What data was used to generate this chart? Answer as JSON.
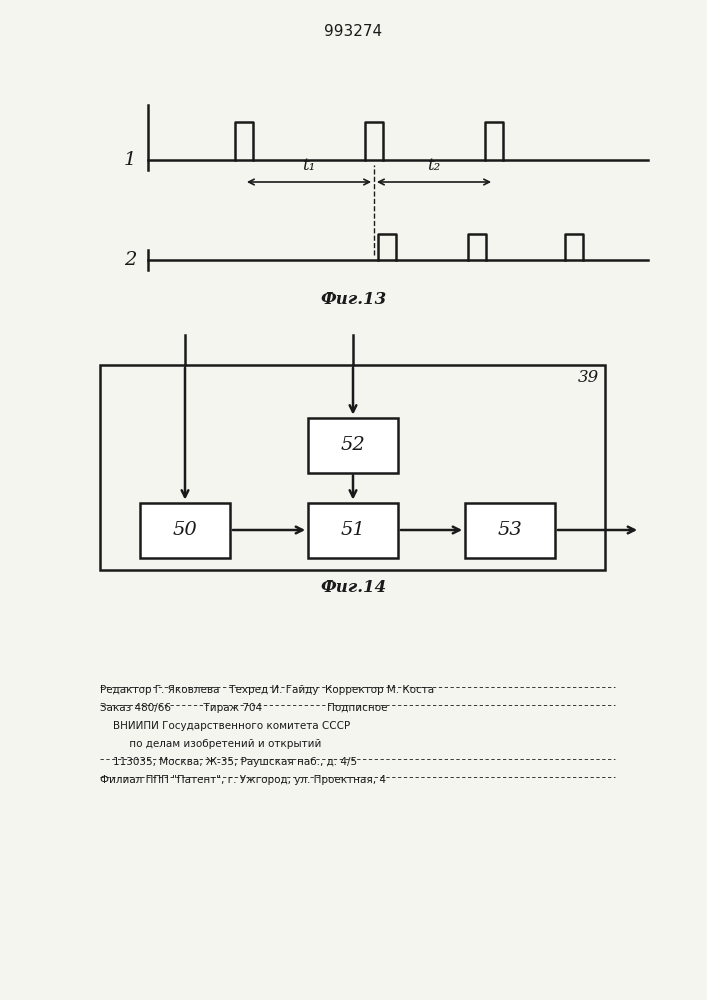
{
  "title": "993274",
  "bg_color": "#f5f5f0",
  "black": "#1a1a1a",
  "fig13_label": "Фиг.13",
  "fig14_label": "Фиг.14",
  "signal1_label": "1",
  "signal2_label": "2",
  "t1_label": "t₁",
  "t2_label": "t₂",
  "outer_box_label": "39",
  "footer_line1": "Редактор Г. Яковлева   Техред И. Гайду  Корректор М. Коста",
  "footer_line2": "Заказ 480/66          Тираж 704                    Подписное",
  "footer_line3": "    ВНИИПИ Государственного комитета СССР",
  "footer_line4": "         по делам изобретений и открытий",
  "footer_line5": "    113035, Москва, Ж-35, Раушская наб., д. 4/5",
  "footer_line6": "Филиал ППП \"Патент\", г. Ужгород, ул. Проектная, 4"
}
